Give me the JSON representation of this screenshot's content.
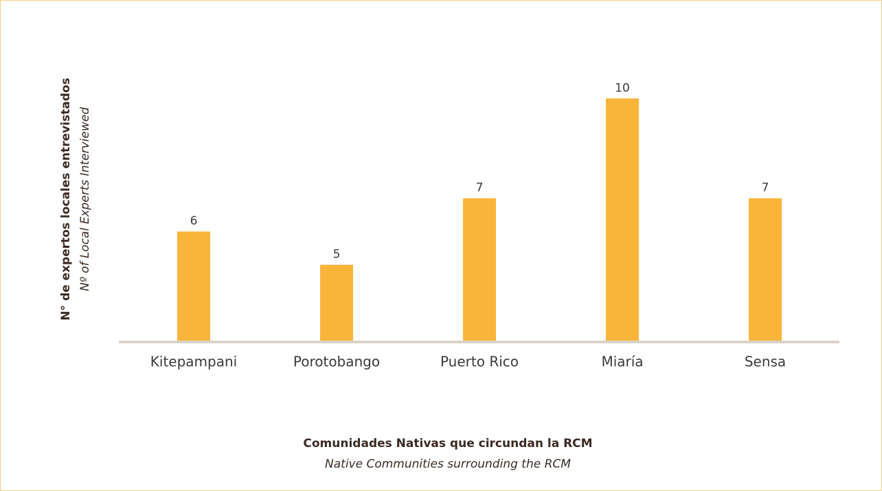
{
  "chart_data": {
    "type": "bar",
    "y_label": "N° de expertos locales entrevistados",
    "y_label_en": "Nº of Local Experts Interviewed",
    "x_label": "Comunidades Nativas que circundan la RCM",
    "x_label_en": "Native Communities surrounding the RCM",
    "categories": [
      "Kitepampani",
      "Porotobango",
      "Puerto Rico",
      "Miaría",
      "Sensa"
    ],
    "values": [
      6,
      5,
      7,
      10,
      7
    ],
    "color": "#f9b53a",
    "ylim": [
      2.7,
      10.4
    ]
  }
}
